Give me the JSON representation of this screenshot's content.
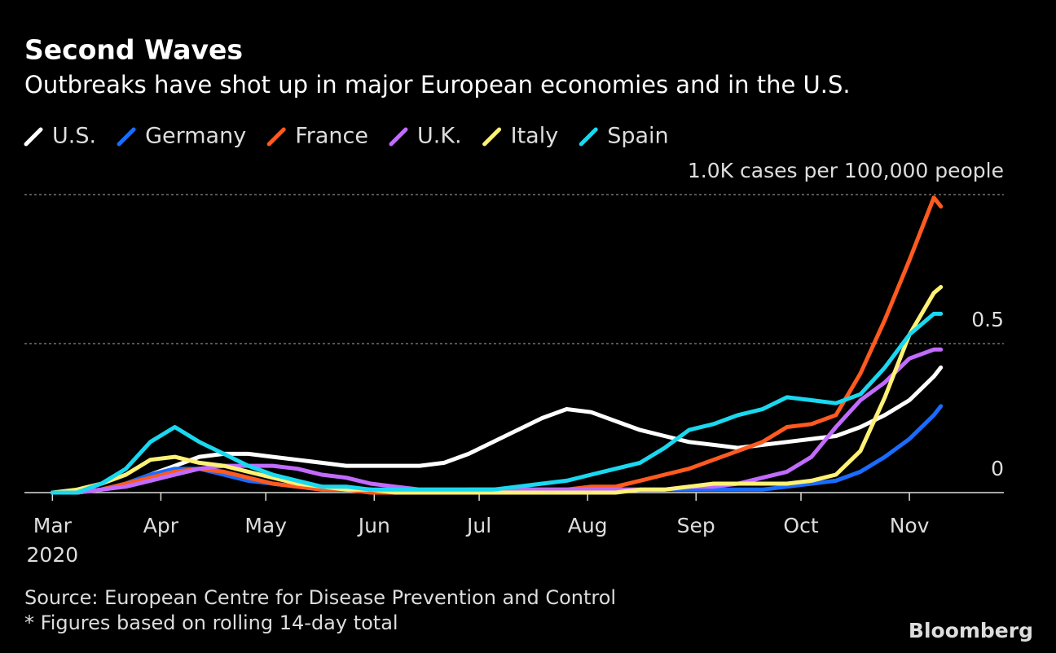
{
  "chart_data": {
    "type": "line",
    "title": "Second Waves",
    "subtitle": "Outbreaks have shot up in major European economies and in the U.S.",
    "source": "Source: European Centre for Disease Prevention and Control",
    "note": "* Figures based on rolling 14-day total",
    "brand": "Bloomberg",
    "x_year_label": "2020",
    "x": [
      0,
      7,
      14,
      21,
      28,
      35,
      42,
      49,
      56,
      63,
      70,
      77,
      84,
      91,
      98,
      105,
      112,
      119,
      126,
      133,
      140,
      147,
      154,
      161,
      168,
      175,
      182,
      189,
      196,
      203,
      210,
      217,
      224,
      231,
      238,
      245,
      252,
      254
    ],
    "xlim": [
      -8,
      272
    ],
    "xticks": [
      {
        "value": 0,
        "label": "Mar"
      },
      {
        "value": 31,
        "label": "Apr"
      },
      {
        "value": 61,
        "label": "May"
      },
      {
        "value": 92,
        "label": "Jun"
      },
      {
        "value": 122,
        "label": "Jul"
      },
      {
        "value": 153,
        "label": "Aug"
      },
      {
        "value": 184,
        "label": "Sep"
      },
      {
        "value": 214,
        "label": "Oct"
      },
      {
        "value": 245,
        "label": "Nov"
      }
    ],
    "ylim": [
      0,
      1.0
    ],
    "yticks": [
      0,
      0.5,
      {
        "value": 1.0,
        "label": "1.0K cases per 100,000 people"
      }
    ],
    "grid": true,
    "legend": "top-left",
    "series": [
      {
        "name": "U.S.",
        "color": "#ffffff",
        "values": [
          0,
          0,
          0.01,
          0.03,
          0.06,
          0.09,
          0.12,
          0.13,
          0.13,
          0.12,
          0.11,
          0.1,
          0.09,
          0.09,
          0.09,
          0.09,
          0.1,
          0.13,
          0.17,
          0.21,
          0.25,
          0.28,
          0.27,
          0.24,
          0.21,
          0.19,
          0.17,
          0.16,
          0.15,
          0.16,
          0.17,
          0.18,
          0.19,
          0.22,
          0.26,
          0.31,
          0.39,
          0.42
        ]
      },
      {
        "name": "Germany",
        "color": "#1a6cff",
        "values": [
          0,
          0,
          0.01,
          0.03,
          0.06,
          0.08,
          0.08,
          0.06,
          0.04,
          0.03,
          0.02,
          0.01,
          0.01,
          0.01,
          0,
          0,
          0,
          0,
          0,
          0,
          0,
          0,
          0.01,
          0.01,
          0.01,
          0.01,
          0.01,
          0.01,
          0.01,
          0.01,
          0.02,
          0.03,
          0.04,
          0.07,
          0.12,
          0.18,
          0.26,
          0.29
        ]
      },
      {
        "name": "France",
        "color": "#ff5a1f",
        "values": [
          0,
          0,
          0.01,
          0.03,
          0.05,
          0.07,
          0.08,
          0.07,
          0.05,
          0.03,
          0.02,
          0.01,
          0.01,
          0,
          0,
          0,
          0,
          0.01,
          0.01,
          0.01,
          0.01,
          0.01,
          0.02,
          0.02,
          0.04,
          0.06,
          0.08,
          0.11,
          0.14,
          0.17,
          0.22,
          0.23,
          0.26,
          0.4,
          0.58,
          0.78,
          0.99,
          0.96
        ]
      },
      {
        "name": "U.K.",
        "color": "#c26bff",
        "values": [
          0,
          0,
          0.01,
          0.02,
          0.04,
          0.06,
          0.08,
          0.09,
          0.09,
          0.09,
          0.08,
          0.06,
          0.05,
          0.03,
          0.02,
          0.01,
          0.01,
          0.01,
          0.01,
          0.01,
          0.01,
          0.01,
          0.01,
          0.01,
          0.01,
          0.01,
          0.02,
          0.02,
          0.03,
          0.05,
          0.07,
          0.12,
          0.22,
          0.31,
          0.37,
          0.45,
          0.48,
          0.48
        ]
      },
      {
        "name": "Italy",
        "color": "#fff176",
        "values": [
          0,
          0.01,
          0.03,
          0.06,
          0.11,
          0.12,
          0.1,
          0.09,
          0.07,
          0.05,
          0.03,
          0.02,
          0.01,
          0.01,
          0,
          0,
          0,
          0,
          0,
          0,
          0,
          0,
          0,
          0,
          0.01,
          0.01,
          0.02,
          0.03,
          0.03,
          0.03,
          0.03,
          0.04,
          0.06,
          0.14,
          0.32,
          0.53,
          0.67,
          0.69
        ]
      },
      {
        "name": "Spain",
        "color": "#19d8f0",
        "values": [
          0,
          0,
          0.03,
          0.08,
          0.17,
          0.22,
          0.17,
          0.13,
          0.09,
          0.06,
          0.04,
          0.02,
          0.02,
          0.01,
          0.01,
          0.01,
          0.01,
          0.01,
          0.01,
          0.02,
          0.03,
          0.04,
          0.06,
          0.08,
          0.1,
          0.15,
          0.21,
          0.23,
          0.26,
          0.28,
          0.32,
          0.31,
          0.3,
          0.33,
          0.42,
          0.53,
          0.6,
          0.6
        ]
      }
    ]
  }
}
